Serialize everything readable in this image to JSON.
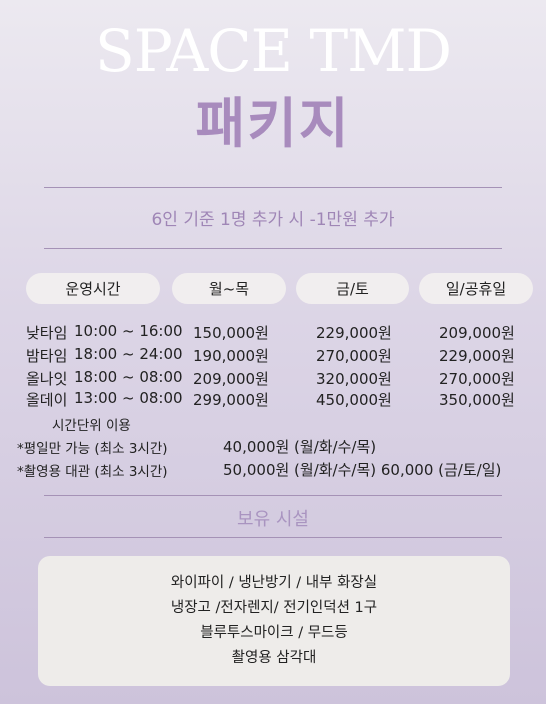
{
  "brand": "SPACE TMD",
  "title": "패키지",
  "subtitle": "6인 기준 1명 추가 시 -1만원 추가",
  "headers": [
    "운영시간",
    "월~목",
    "금/토",
    "일/공휴일"
  ],
  "rows": [
    {
      "name": "낮타임",
      "time": "10:00 ~ 16:00",
      "p1": "150,000원",
      "p2": "229,000원",
      "p3": "209,000원"
    },
    {
      "name": "밤타임",
      "time": "18:00 ~ 24:00",
      "p1": "190,000원",
      "p2": "270,000원",
      "p3": "229,000원"
    },
    {
      "name": "올나잇",
      "time": "18:00 ~ 08:00",
      "p1": "209,000원",
      "p2": "320,000원",
      "p3": "270,000원"
    },
    {
      "name": "올데이",
      "time": "13:00 ~ 08:00",
      "p1": "299,000원",
      "p2": "450,000원",
      "p3": "350,000원"
    }
  ],
  "hourly": {
    "label": "시간단위 이용",
    "weekday_label": "*평일만 가능 (최소 3시간)",
    "weekday_price": "40,000원 (월/화/수/목)",
    "shoot_label": "*촬영용 대관 (최소 3시간)",
    "shoot_price": "50,000원 (월/화/수/목)  60,000 (금/토/일)"
  },
  "facilities_title": "보유 시설",
  "facilities": [
    "와이파이 / 냉난방기 / 내부 화장실",
    "냉장고 /전자렌지/ 전기인덕션 1구",
    "블루투스마이크 / 무드등",
    "촬영용 삼각대"
  ]
}
